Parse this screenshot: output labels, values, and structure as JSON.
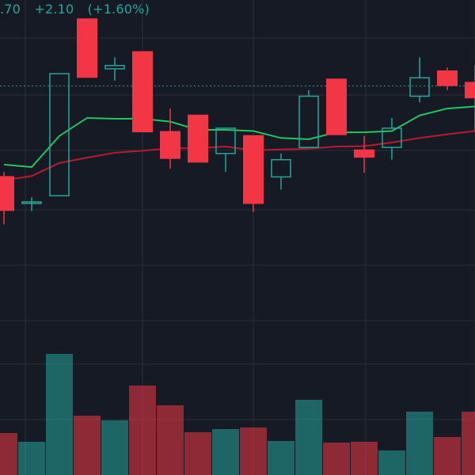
{
  "header": {
    "last_price": ".70",
    "change": "+2.10",
    "change_percent": "(+1.60%)"
  },
  "colors": {
    "background": "#161a25",
    "grid": "#2a2e39",
    "up": "#26a69a",
    "down": "#f23645",
    "ma_fast": "#22c55e",
    "ma_slow": "#b71c2e",
    "price_line": "#26a69a",
    "volume_up": "#26a69a",
    "volume_down": "#f23645"
  },
  "chart_data": {
    "type": "candlestick",
    "candles": [
      {
        "open": 1310,
        "high": 1320,
        "low": 1192,
        "close": 1225
      },
      {
        "open": 1247,
        "high": 1258,
        "low": 1225,
        "close": 1247
      },
      {
        "open": 1262,
        "high": 1560,
        "low": 1262,
        "close": 1560
      },
      {
        "open": 1695,
        "high": 1695,
        "low": 1550,
        "close": 1550
      },
      {
        "open": 1572,
        "high": 1600,
        "low": 1543,
        "close": 1580
      },
      {
        "open": 1615,
        "high": 1615,
        "low": 1417,
        "close": 1417
      },
      {
        "open": 1420,
        "high": 1475,
        "low": 1328,
        "close": 1352
      },
      {
        "open": 1460,
        "high": 1460,
        "low": 1343,
        "close": 1343
      },
      {
        "open": 1365,
        "high": 1427,
        "low": 1320,
        "close": 1427
      },
      {
        "open": 1410,
        "high": 1410,
        "low": 1222,
        "close": 1242
      },
      {
        "open": 1308,
        "high": 1365,
        "low": 1277,
        "close": 1350
      },
      {
        "open": 1380,
        "high": 1520,
        "low": 1380,
        "close": 1505
      },
      {
        "open": 1548,
        "high": 1548,
        "low": 1410,
        "close": 1410
      },
      {
        "open": 1375,
        "high": 1408,
        "low": 1318,
        "close": 1355
      },
      {
        "open": 1380,
        "high": 1452,
        "low": 1350,
        "close": 1427
      },
      {
        "open": 1505,
        "high": 1600,
        "low": 1490,
        "close": 1550
      },
      {
        "open": 1568,
        "high": 1575,
        "low": 1520,
        "close": 1530
      },
      {
        "open": 1540,
        "high": 1580,
        "low": 1420,
        "close": 1500
      }
    ],
    "ma_fast": [
      1338,
      1332,
      1408,
      1452,
      1450,
      1450,
      1443,
      1423,
      1423,
      1420,
      1403,
      1400,
      1417,
      1417,
      1420,
      1458,
      1475,
      1480
    ],
    "ma_slow": [
      1300,
      1310,
      1342,
      1355,
      1367,
      1372,
      1378,
      1378,
      1382,
      1373,
      1375,
      1377,
      1382,
      1383,
      1392,
      1403,
      1412,
      1420
    ],
    "price_line": 1530,
    "volume": [
      53,
      42,
      153,
      75,
      69,
      113,
      88,
      54,
      58,
      60,
      43,
      95,
      41,
      42,
      31,
      80,
      48,
      80
    ]
  }
}
